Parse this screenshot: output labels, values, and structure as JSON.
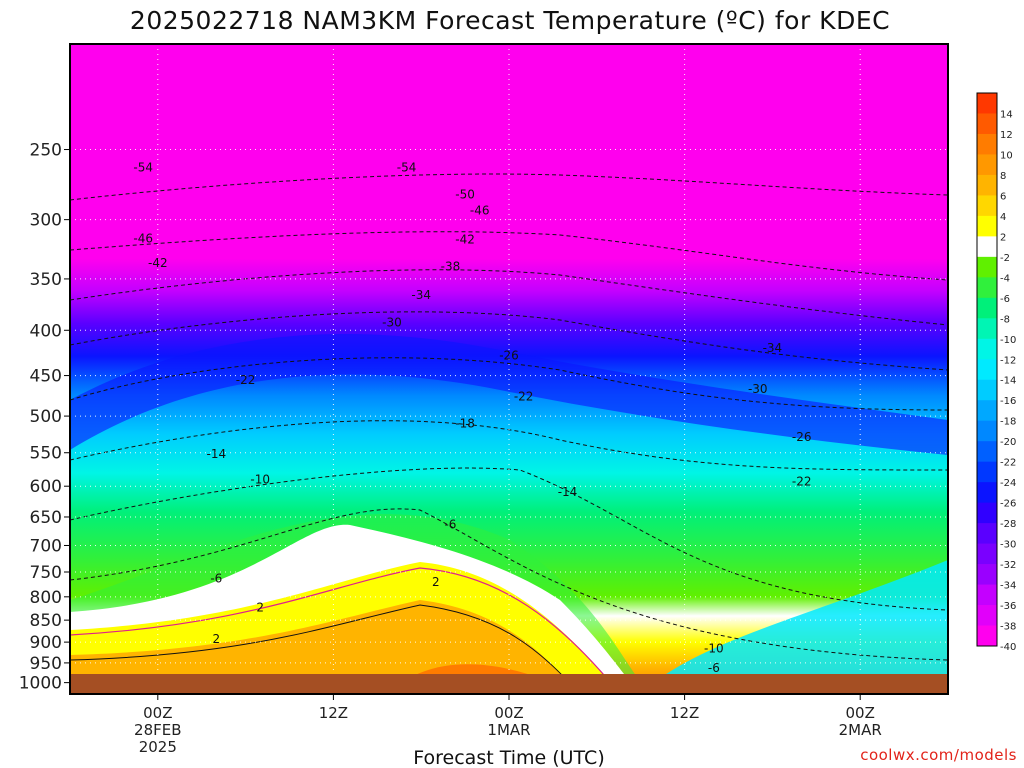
{
  "chart_data": {
    "type": "heatmap",
    "title": "2025022718 NAM3KM Forecast Temperature (ºC) for KDEC",
    "xlabel": "Forecast Time (UTC)",
    "ylabel": "",
    "x_ticks": [
      {
        "line1": "00Z",
        "line2": "28FEB",
        "line3": "2025",
        "hour": 6
      },
      {
        "line1": "12Z",
        "line2": "",
        "line3": "",
        "hour": 18
      },
      {
        "line1": "00Z",
        "line2": "1MAR",
        "line3": "",
        "hour": 30
      },
      {
        "line1": "12Z",
        "line2": "",
        "line3": "",
        "hour": 42
      },
      {
        "line1": "00Z",
        "line2": "2MAR",
        "line3": "",
        "hour": 54
      }
    ],
    "xlim": [
      0,
      60
    ],
    "y_ticks": [
      250,
      300,
      350,
      400,
      450,
      500,
      550,
      600,
      650,
      700,
      750,
      800,
      850,
      900,
      950,
      1000
    ],
    "ylim": [
      1030,
      190
    ],
    "yscale": "log",
    "colorbar_labels": [
      "14",
      "12",
      "10",
      "8",
      "6",
      "4",
      "2",
      "-2",
      "-4",
      "-6",
      "-8",
      "-10",
      "-12",
      "-14",
      "-16",
      "-18",
      "-20",
      "-22",
      "-24",
      "-26",
      "-28",
      "-30",
      "-32",
      "-34",
      "-36",
      "-38",
      "-40"
    ],
    "contour_labels": [
      {
        "text": "-54",
        "hour": 5,
        "p": 262
      },
      {
        "text": "-54",
        "hour": 23,
        "p": 262
      },
      {
        "text": "-50",
        "hour": 27,
        "p": 281
      },
      {
        "text": "-46",
        "hour": 28,
        "p": 293
      },
      {
        "text": "-46",
        "hour": 5,
        "p": 315
      },
      {
        "text": "-42",
        "hour": 27,
        "p": 316
      },
      {
        "text": "-42",
        "hour": 6,
        "p": 336
      },
      {
        "text": "-38",
        "hour": 26,
        "p": 339
      },
      {
        "text": "-34",
        "hour": 24,
        "p": 365
      },
      {
        "text": "-30",
        "hour": 22,
        "p": 392
      },
      {
        "text": "-26",
        "hour": 30,
        "p": 427
      },
      {
        "text": "-34",
        "hour": 48,
        "p": 419
      },
      {
        "text": "-22",
        "hour": 12,
        "p": 455
      },
      {
        "text": "-30",
        "hour": 47,
        "p": 466
      },
      {
        "text": "-22",
        "hour": 31,
        "p": 475
      },
      {
        "text": "-18",
        "hour": 27,
        "p": 510
      },
      {
        "text": "-26",
        "hour": 50,
        "p": 528
      },
      {
        "text": "-14",
        "hour": 10,
        "p": 552
      },
      {
        "text": "-10",
        "hour": 13,
        "p": 590
      },
      {
        "text": "-22",
        "hour": 50,
        "p": 593
      },
      {
        "text": "-14",
        "hour": 34,
        "p": 609
      },
      {
        "text": "-6",
        "hour": 26,
        "p": 663
      },
      {
        "text": "-6",
        "hour": 10,
        "p": 763
      },
      {
        "text": "2",
        "hour": 25,
        "p": 770
      },
      {
        "text": "2",
        "hour": 13,
        "p": 822
      },
      {
        "text": "2",
        "hour": 10,
        "p": 893
      },
      {
        "text": "-10",
        "hour": 44,
        "p": 915
      },
      {
        "text": "-6",
        "hour": 44,
        "p": 963
      }
    ]
  },
  "credit": "coolwx.com/models",
  "colors": {
    "ground": "#a54f23",
    "ramp": [
      "#ff00ee",
      "#e100fa",
      "#c400ff",
      "#9a00ff",
      "#7a00ff",
      "#5a00ff",
      "#3000ff",
      "#0b14ff",
      "#0038ff",
      "#0060ff",
      "#0088ff",
      "#00a8ff",
      "#00ccff",
      "#00eaff",
      "#00f5e6",
      "#00f5b4",
      "#00f07a",
      "#30f03c",
      "#60f000",
      "#ffffff",
      "#ffff00",
      "#ffd700",
      "#ffb400",
      "#ff9800",
      "#ff7c00",
      "#ff5a00",
      "#ff3800"
    ]
  }
}
